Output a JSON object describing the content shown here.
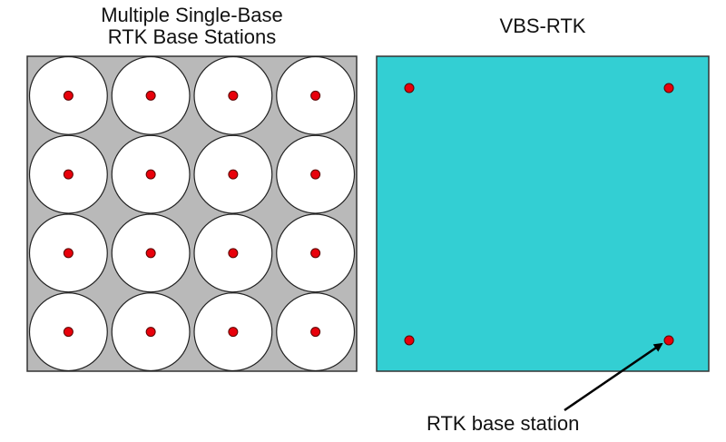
{
  "left_panel": {
    "title_line1": "Multiple Single-Base",
    "title_line2": "RTK Base Stations",
    "grid_rows": 4,
    "grid_cols": 4,
    "background_color": "#b9b9b9",
    "coverage_color": "#ffffff"
  },
  "right_panel": {
    "title": "VBS-RTK",
    "background_color": "#33cfd3",
    "station_count": 4
  },
  "station_color": "#e8000b",
  "callout": {
    "label": "RTK base station"
  }
}
